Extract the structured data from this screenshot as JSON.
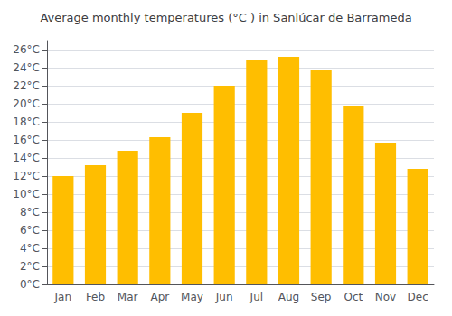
{
  "chart_data": {
    "type": "bar",
    "title": "Average monthly temperatures (°C ) in Sanlúcar de Barrameda",
    "categories": [
      "Jan",
      "Feb",
      "Mar",
      "Apr",
      "May",
      "Jun",
      "Jul",
      "Aug",
      "Sep",
      "Oct",
      "Nov",
      "Dec"
    ],
    "values": [
      12.0,
      13.2,
      14.8,
      16.3,
      19.0,
      22.0,
      24.8,
      25.2,
      23.8,
      19.8,
      15.7,
      12.8
    ],
    "color": "#FFBE00",
    "ylim": [
      0,
      27
    ],
    "yticks": [
      {
        "value": 0,
        "label": "0°C"
      },
      {
        "value": 2,
        "label": "2°C"
      },
      {
        "value": 4,
        "label": "4°C"
      },
      {
        "value": 6,
        "label": "6°C"
      },
      {
        "value": 8,
        "label": "8°C"
      },
      {
        "value": 10,
        "label": "10°C"
      },
      {
        "value": 12,
        "label": "12°C"
      },
      {
        "value": 14,
        "label": "14°C"
      },
      {
        "value": 16,
        "label": "16°C"
      },
      {
        "value": 18,
        "label": "18°C"
      },
      {
        "value": 20,
        "label": "20°C"
      },
      {
        "value": 22,
        "label": "22°C"
      },
      {
        "value": 24,
        "label": "24°C"
      },
      {
        "value": 26,
        "label": "26°C"
      }
    ],
    "grid": true
  }
}
